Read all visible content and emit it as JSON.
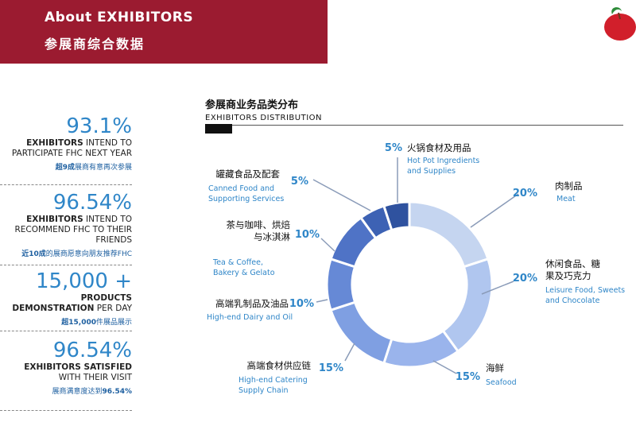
{
  "header": {
    "title_en": "About  EXHIBITORS",
    "title_cn": "参展商综合数据",
    "brand_color": "#9b1b30"
  },
  "stats": [
    {
      "big": "93.1%",
      "desc_bold": "EXHIBITORS",
      "desc_rest": " INTEND TO PARTICIPATE FHC NEXT YEAR",
      "cn_bold": "超9成",
      "cn_rest": "展商有意再次参展"
    },
    {
      "big": "96.54%",
      "desc_bold": "EXHIBITORS",
      "desc_rest": " INTEND TO RECOMMEND FHC TO THEIR FRIENDS",
      "cn_bold": "近10成",
      "cn_rest": "的展商愿意向朋友推荐FHC"
    },
    {
      "big": "15,000 +",
      "desc_bold": "PRODUCTS DEMONSTRATION",
      "desc_rest": " PER DAY",
      "cn_bold": "超15,000",
      "cn_rest": "件展品展示"
    },
    {
      "big": "96.54%",
      "desc_bold": "EXHIBITORS SATISFIED",
      "desc_rest": " WITH THEIR VISIT",
      "cn_bold": "96.54%",
      "cn_rest": "展商满意度达到"
    }
  ],
  "chart_data": {
    "type": "pie",
    "title": "参展商业务品类分布",
    "subtitle": "EXHIBITORS  DISTRIBUTION",
    "unit": "%",
    "slices": [
      {
        "label_cn": "肉制品",
        "label_en": "Meat",
        "value": 20,
        "pct": "20%",
        "color": "#c5d5f0"
      },
      {
        "label_cn": "休闲食品、糖果及巧克力",
        "label_en": "Leisure Food, Sweets and Chocolate",
        "value": 20,
        "pct": "20%",
        "color": "#b0c6ef"
      },
      {
        "label_cn": "海鲜",
        "label_en": "Seafood",
        "value": 15,
        "pct": "15%",
        "color": "#9ab4ec"
      },
      {
        "label_cn": "高端食材供应链",
        "label_en": "High-end Catering Supply Chain",
        "value": 15,
        "pct": "15%",
        "color": "#7f9fe2"
      },
      {
        "label_cn": "高端乳制品及油品",
        "label_en": "High-end Dairy and Oil",
        "value": 10,
        "pct": "10%",
        "color": "#6689d6"
      },
      {
        "label_cn": "茶与咖啡、烘焙与冰淇淋",
        "label_en": "Tea & Coffee, Bakery & Gelato",
        "value": 10,
        "pct": "10%",
        "color": "#4f73c6"
      },
      {
        "label_cn": "罐藏食品及配套",
        "label_en": "Canned Food and Supporting Services",
        "value": 5,
        "pct": "5%",
        "color": "#3d62b4"
      },
      {
        "label_cn": "火锅食材及用品",
        "label_en": "Hot Pot Ingredients and Supplies",
        "value": 5,
        "pct": "5%",
        "color": "#2f529f"
      }
    ],
    "label_color_cn": "#111111",
    "label_color_en": "#2f86c8",
    "pct_color": "#2f86c8"
  }
}
